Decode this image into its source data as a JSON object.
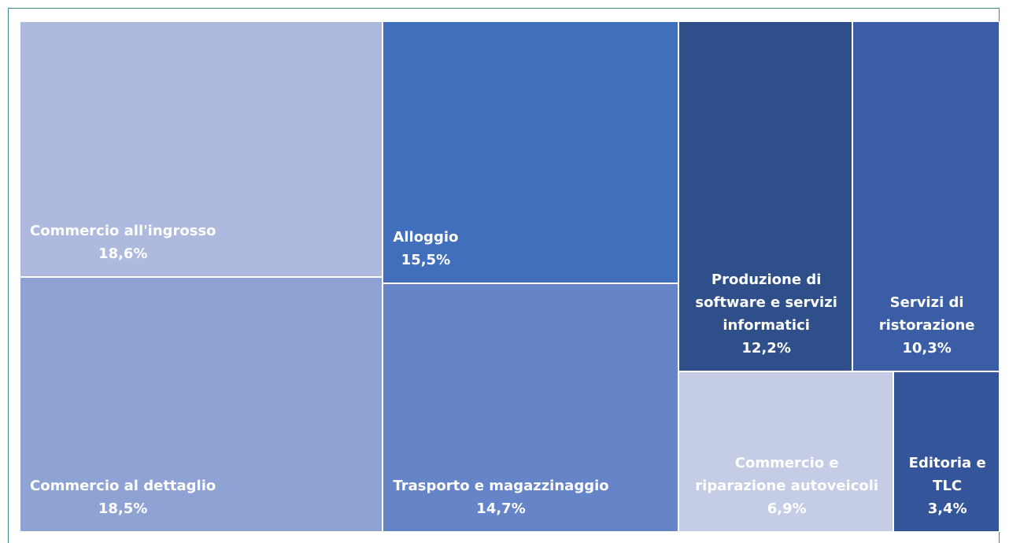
{
  "chart_data": {
    "type": "treemap",
    "categories": [
      "Commercio all'ingrosso",
      "Commercio al dettaglio",
      "Alloggio",
      "Trasporto e magazzinaggio",
      "Produzione di software e servizi informatici",
      "Servizi di ristorazione",
      "Commercio e riparazione autoveicoli",
      "Editoria e TLC"
    ],
    "values": [
      18.6,
      18.5,
      15.5,
      14.7,
      12.2,
      10.3,
      6.9,
      3.4
    ],
    "value_labels": [
      "18,6%",
      "18,5%",
      "15,5%",
      "14,7%",
      "12,2%",
      "10,3%",
      "6,9%",
      "3,4%"
    ],
    "colors": [
      "#adb9dd",
      "#8fa2d4",
      "#416fbc",
      "#6585c8",
      "#2f4f8a",
      "#3a5da5",
      "#c5cde6",
      "#34559a"
    ]
  }
}
